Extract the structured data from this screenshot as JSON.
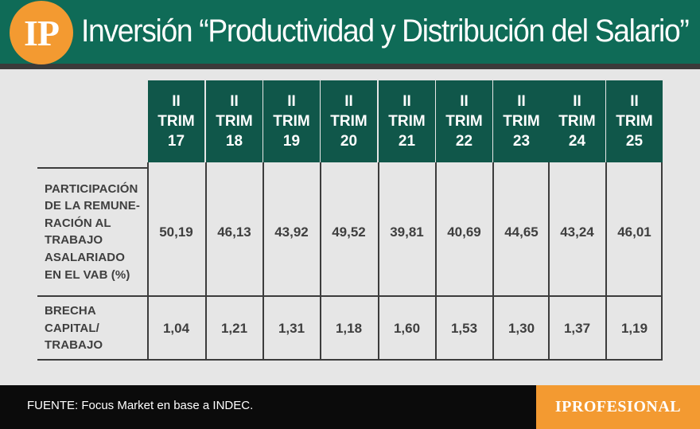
{
  "header": {
    "logo_text": "IP",
    "title": "Inversión “Productividad y Distribución del Salario”"
  },
  "chart_data": {
    "type": "table",
    "title": "Inversión “Productividad y Distribución del Salario”",
    "columns": [
      [
        "II",
        "TRIM",
        "17"
      ],
      [
        "II",
        "TRIM",
        "18"
      ],
      [
        "II",
        "TRIM",
        "19"
      ],
      [
        "II",
        "TRIM",
        "20"
      ],
      [
        "II",
        "TRIM",
        "21"
      ],
      [
        "II",
        "TRIM",
        "22"
      ],
      [
        "II",
        "TRIM",
        "23"
      ],
      [
        "II",
        "TRIM",
        "24"
      ],
      [
        "II",
        "TRIM",
        "25"
      ]
    ],
    "rows": [
      {
        "label": [
          "PARTICIPACIÓN",
          "DE LA REMUNE-",
          "RACIÓN AL",
          "TRABAJO",
          "ASALARIADO",
          "EN EL VAB (%)"
        ],
        "values": [
          "50,19",
          "46,13",
          "43,92",
          "49,52",
          "39,81",
          "40,69",
          "44,65",
          "43,24",
          "46,01"
        ]
      },
      {
        "label": [
          "BRECHA",
          "CAPITAL/",
          "TRABAJO"
        ],
        "values": [
          "1,04",
          "1,21",
          "1,31",
          "1,18",
          "1,60",
          "1,53",
          "1,30",
          "1,37",
          "1,19"
        ]
      }
    ]
  },
  "footer": {
    "source": "FUENTE: Focus Market en base a INDEC.",
    "brand": "IPROFESIONAL"
  },
  "colors": {
    "header_band": "#0f6b57",
    "table_header": "#10574a",
    "accent_orange": "#f39a31",
    "background": "#e6e6e6",
    "footer": "#0b0b0b"
  }
}
